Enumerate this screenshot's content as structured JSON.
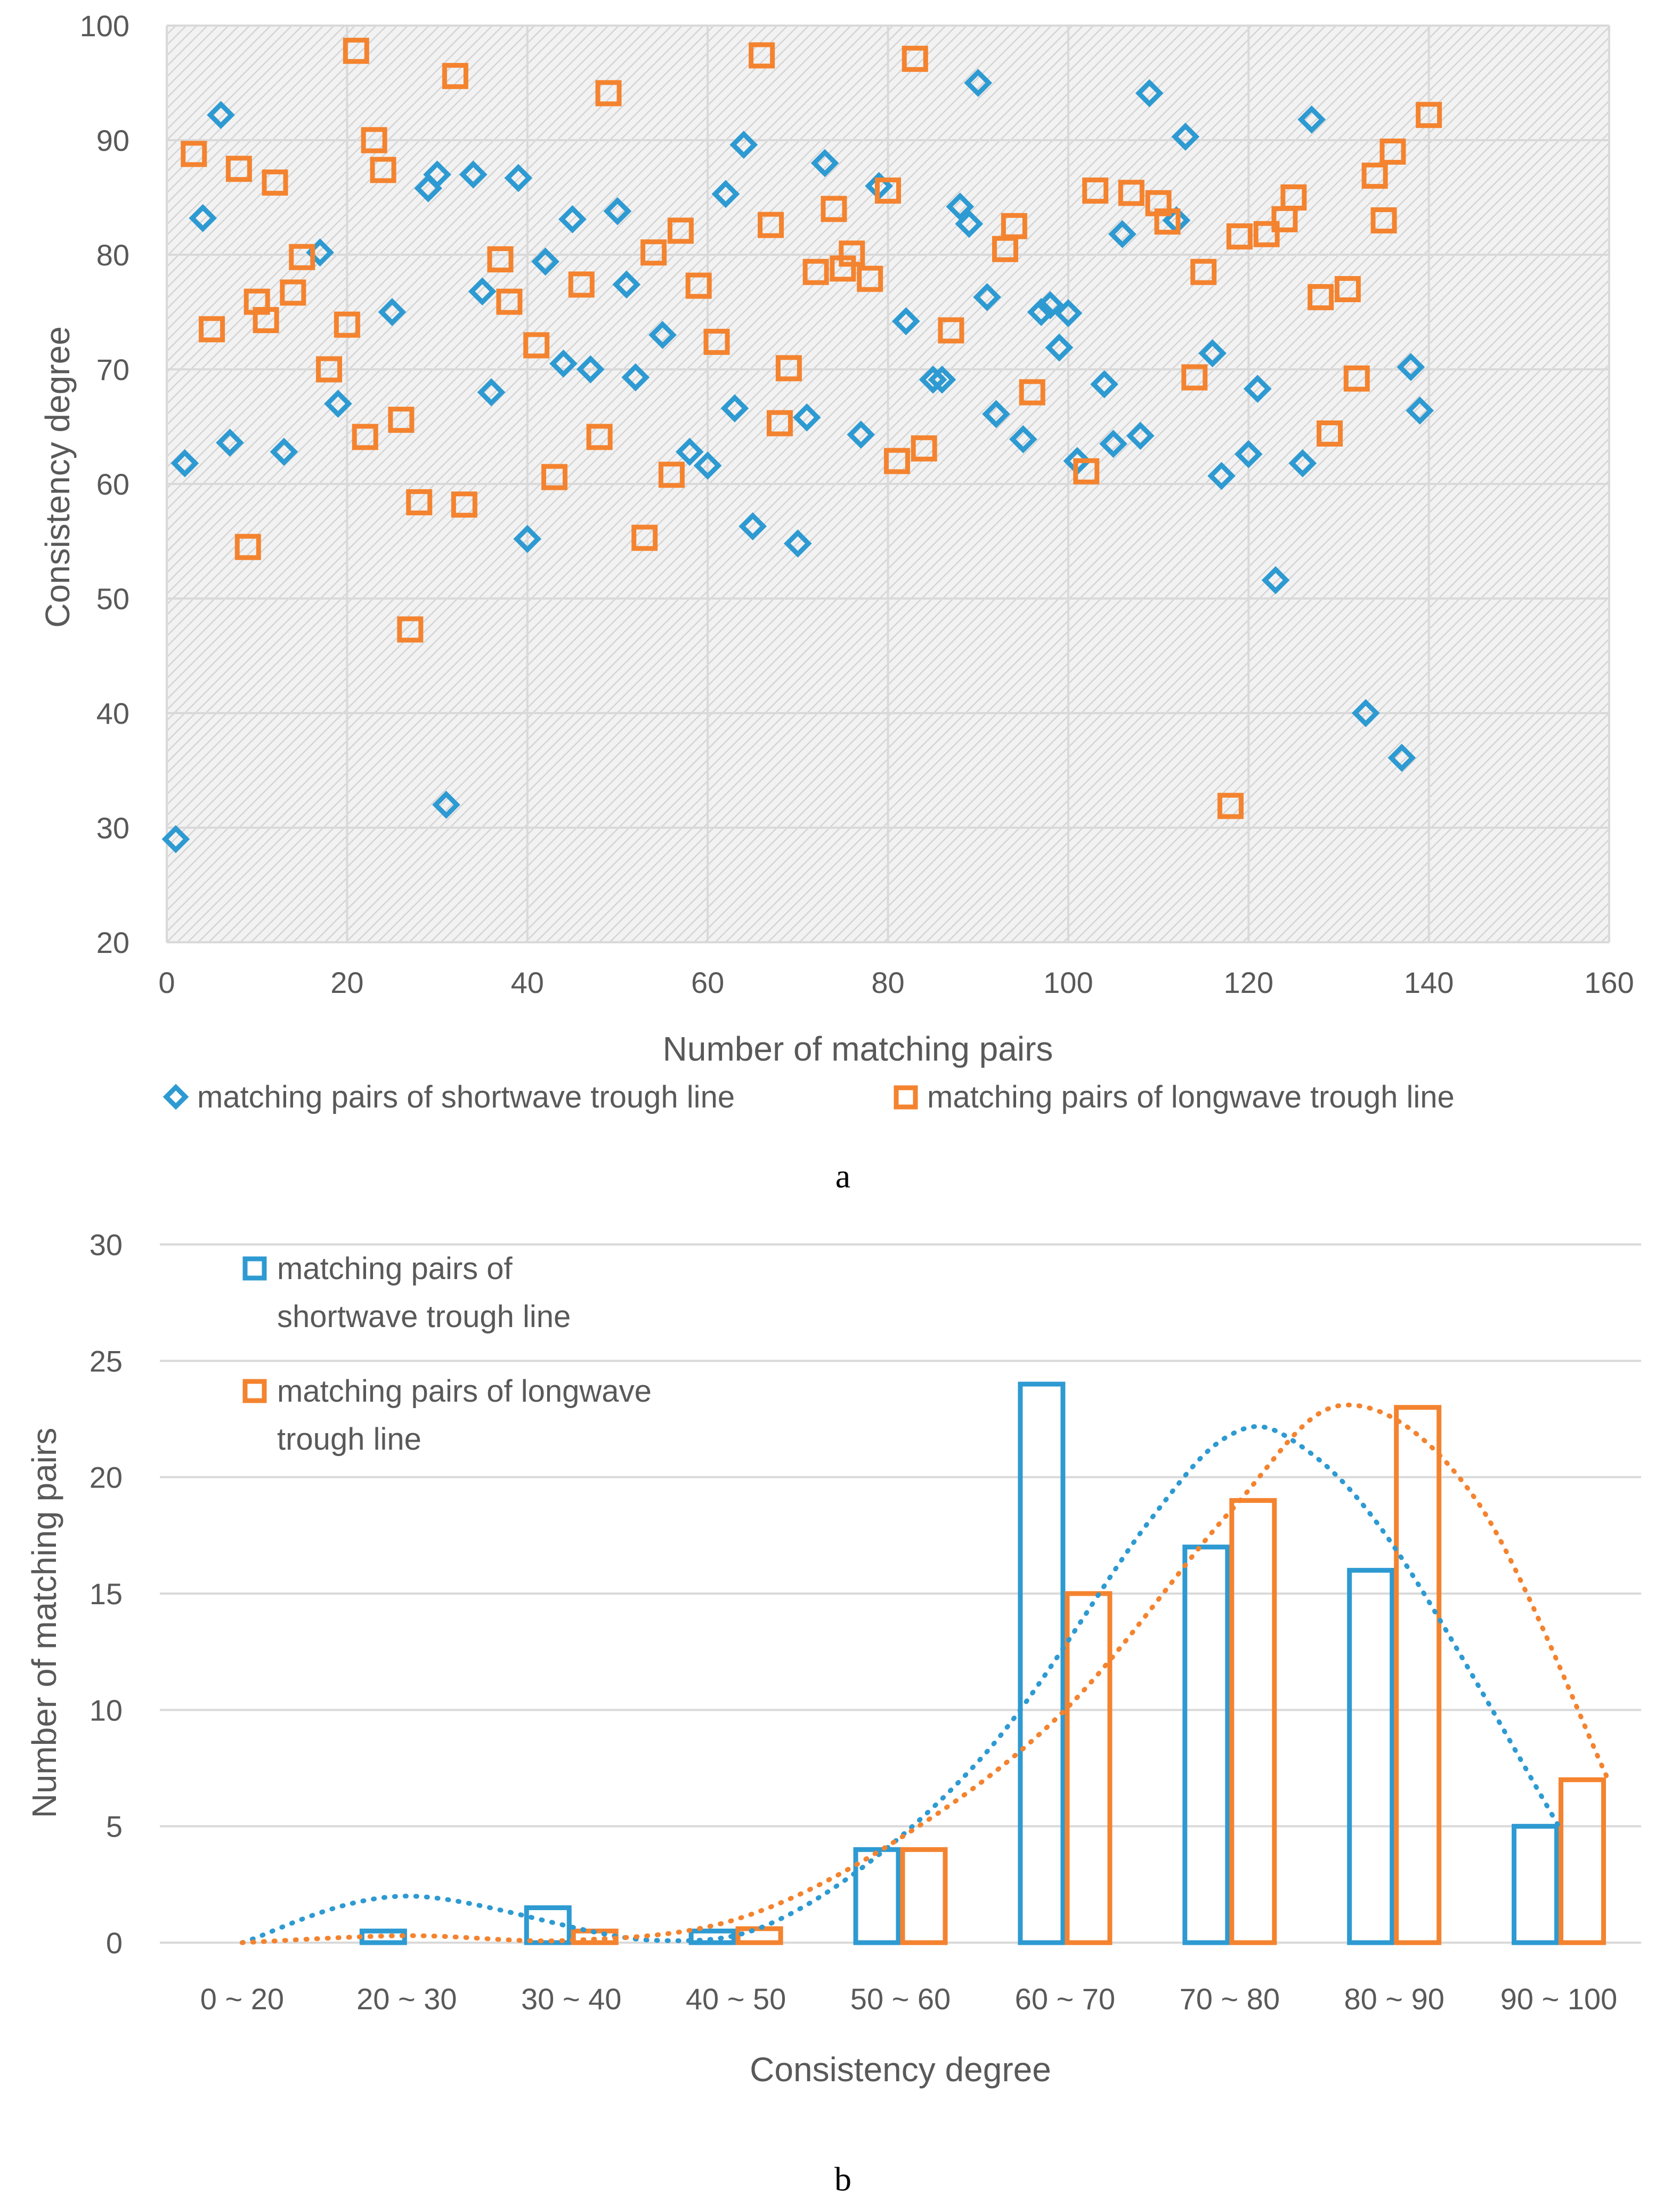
{
  "chart_data": [
    {
      "type": "scatter",
      "panel_label": "a",
      "xlabel": "Number of matching pairs",
      "ylabel": "Consistency degree",
      "xlim": [
        0,
        160
      ],
      "ylim": [
        20,
        100
      ],
      "x_ticks": [
        0,
        20,
        40,
        60,
        80,
        100,
        120,
        140,
        160
      ],
      "y_ticks": [
        20,
        30,
        40,
        50,
        60,
        70,
        80,
        90,
        100
      ],
      "grid": true,
      "legend_position": "bottom",
      "series": [
        {
          "name": "matching pairs of shortwave trough line",
          "color": "#2E9AD2",
          "marker": "diamond",
          "points": [
            [
              1,
              29
            ],
            [
              2,
              61.8
            ],
            [
              4,
              83.2
            ],
            [
              6,
              92.2
            ],
            [
              7,
              63.6
            ],
            [
              13,
              62.8
            ],
            [
              17,
              80.2
            ],
            [
              19,
              67
            ],
            [
              25,
              75
            ],
            [
              29,
              85.8
            ],
            [
              30,
              87
            ],
            [
              31,
              32
            ],
            [
              34,
              87
            ],
            [
              35,
              76.8
            ],
            [
              36,
              68
            ],
            [
              39,
              86.7
            ],
            [
              40,
              55.2
            ],
            [
              42,
              79.4
            ],
            [
              44,
              70.5
            ],
            [
              45,
              83.1
            ],
            [
              47,
              70
            ],
            [
              50,
              83.8
            ],
            [
              51,
              77.4
            ],
            [
              52,
              69.3
            ],
            [
              55,
              73
            ],
            [
              58,
              62.8
            ],
            [
              60,
              61.6
            ],
            [
              62,
              85.3
            ],
            [
              63,
              66.6
            ],
            [
              64,
              89.6
            ],
            [
              65,
              56.3
            ],
            [
              70,
              54.8
            ],
            [
              71,
              65.8
            ],
            [
              73,
              88
            ],
            [
              77,
              64.3
            ],
            [
              79,
              86
            ],
            [
              82,
              74.2
            ],
            [
              85,
              69.1
            ],
            [
              86,
              69.1
            ],
            [
              88,
              84.2
            ],
            [
              89,
              82.7
            ],
            [
              90,
              95
            ],
            [
              91,
              76.3
            ],
            [
              92,
              66.1
            ],
            [
              95,
              63.9
            ],
            [
              97,
              75
            ],
            [
              98,
              75.6
            ],
            [
              99,
              71.9
            ],
            [
              100,
              74.9
            ],
            [
              101,
              62
            ],
            [
              104,
              68.7
            ],
            [
              105,
              63.5
            ],
            [
              106,
              81.8
            ],
            [
              108,
              64.2
            ],
            [
              109,
              94.1
            ],
            [
              112,
              83
            ],
            [
              113,
              90.3
            ],
            [
              116,
              71.4
            ],
            [
              117,
              60.7
            ],
            [
              120,
              62.6
            ],
            [
              121,
              68.3
            ],
            [
              123,
              51.6
            ],
            [
              126,
              61.8
            ],
            [
              127,
              91.8
            ],
            [
              133,
              40
            ],
            [
              137,
              36.1
            ],
            [
              138,
              70.2
            ],
            [
              139,
              66.4
            ]
          ]
        },
        {
          "name": "matching pairs of longwave trough line",
          "color": "#F4832F",
          "marker": "square",
          "points": [
            [
              3,
              88.8
            ],
            [
              5,
              73.5
            ],
            [
              8,
              87.5
            ],
            [
              9,
              54.5
            ],
            [
              10,
              75.9
            ],
            [
              11,
              74.3
            ],
            [
              12,
              86.3
            ],
            [
              14,
              76.7
            ],
            [
              15,
              79.8
            ],
            [
              18,
              70
            ],
            [
              20,
              73.9
            ],
            [
              21,
              97.8
            ],
            [
              22,
              64.1
            ],
            [
              23,
              90
            ],
            [
              24,
              87.4
            ],
            [
              26,
              65.6
            ],
            [
              27,
              47.3
            ],
            [
              28,
              58.4
            ],
            [
              32,
              95.6
            ],
            [
              33,
              58.2
            ],
            [
              37,
              79.6
            ],
            [
              38,
              75.9
            ],
            [
              41,
              72.1
            ],
            [
              43,
              60.6
            ],
            [
              46,
              77.4
            ],
            [
              48,
              64.1
            ],
            [
              49,
              94.1
            ],
            [
              53,
              55.3
            ],
            [
              54,
              80.2
            ],
            [
              56,
              60.8
            ],
            [
              57,
              82.1
            ],
            [
              59,
              77.3
            ],
            [
              61,
              72.4
            ],
            [
              66,
              97.4
            ],
            [
              67,
              82.6
            ],
            [
              68,
              65.3
            ],
            [
              69,
              70.1
            ],
            [
              72,
              78.5
            ],
            [
              74,
              84
            ],
            [
              75,
              78.8
            ],
            [
              76,
              80.1
            ],
            [
              78,
              77.9
            ],
            [
              80,
              85.6
            ],
            [
              81,
              62
            ],
            [
              83,
              97.1
            ],
            [
              84,
              63.1
            ],
            [
              87,
              73.4
            ],
            [
              93,
              80.5
            ],
            [
              94,
              82.5
            ],
            [
              96,
              68
            ],
            [
              102,
              61.1
            ],
            [
              103,
              85.6
            ],
            [
              107,
              85.4
            ],
            [
              110,
              84.5
            ],
            [
              111,
              82.9
            ],
            [
              114,
              69.3
            ],
            [
              115,
              78.5
            ],
            [
              118,
              31.9
            ],
            [
              119,
              81.6
            ],
            [
              122,
              81.8
            ],
            [
              124,
              83.1
            ],
            [
              125,
              85
            ],
            [
              128,
              76.3
            ],
            [
              129,
              64.4
            ],
            [
              131,
              77
            ],
            [
              132,
              69.2
            ],
            [
              134,
              86.9
            ],
            [
              135,
              83
            ],
            [
              136,
              89
            ],
            [
              140,
              92.2
            ]
          ]
        }
      ]
    },
    {
      "type": "bar",
      "panel_label": "b",
      "xlabel": "Consistency degree",
      "ylabel": "Number of matching pairs",
      "ylim": [
        0,
        30
      ],
      "y_ticks": [
        0,
        5,
        10,
        15,
        20,
        25,
        30
      ],
      "grid": true,
      "legend_position": "top-left",
      "categories": [
        "0 ~ 20",
        "20 ~ 30",
        "30 ~ 40",
        "40 ~ 50",
        "50 ~ 60",
        "60 ~ 70",
        "70 ~ 80",
        "80 ~ 90",
        "90 ~ 100"
      ],
      "series": [
        {
          "name": "matching pairs of shortwave trough line",
          "color": "#2E9AD2",
          "values": [
            0,
            0.5,
            1.5,
            0.5,
            4,
            24,
            17,
            16,
            5
          ]
        },
        {
          "name": "matching pairs of longwave trough line",
          "color": "#F4832F",
          "values": [
            0,
            0,
            0.5,
            0.6,
            4,
            15,
            19,
            23,
            7
          ]
        }
      ],
      "trendlines": [
        {
          "series": "matching pairs of shortwave trough line",
          "style": "dotted",
          "color": "#2E9AD2",
          "points": [
            [
              0,
              0
            ],
            [
              1,
              2
            ],
            [
              2.5,
              0.1
            ],
            [
              3.4,
              1.5
            ],
            [
              4.5,
              8
            ],
            [
              5.5,
              18
            ],
            [
              6,
              21.8
            ],
            [
              6.4,
              21.5
            ],
            [
              7,
              17
            ],
            [
              8,
              5
            ]
          ]
        },
        {
          "series": "matching pairs of longwave trough line",
          "style": "dotted",
          "color": "#F4832F",
          "points": [
            [
              0,
              0
            ],
            [
              1,
              0.3
            ],
            [
              2,
              0.1
            ],
            [
              3,
              1
            ],
            [
              4,
              4.5
            ],
            [
              5,
              10
            ],
            [
              6,
              18.5
            ],
            [
              6.7,
              23.1
            ],
            [
              7.5,
              19
            ],
            [
              8.3,
              7
            ]
          ]
        }
      ]
    }
  ],
  "legend_a": {
    "short": "matching pairs of shortwave trough line",
    "long": "matching pairs of longwave trough line"
  },
  "legend_b": {
    "short_line1": "matching pairs of",
    "short_line2": "shortwave trough line",
    "long_line1": "matching pairs of longwave",
    "long_line2": "trough line"
  }
}
